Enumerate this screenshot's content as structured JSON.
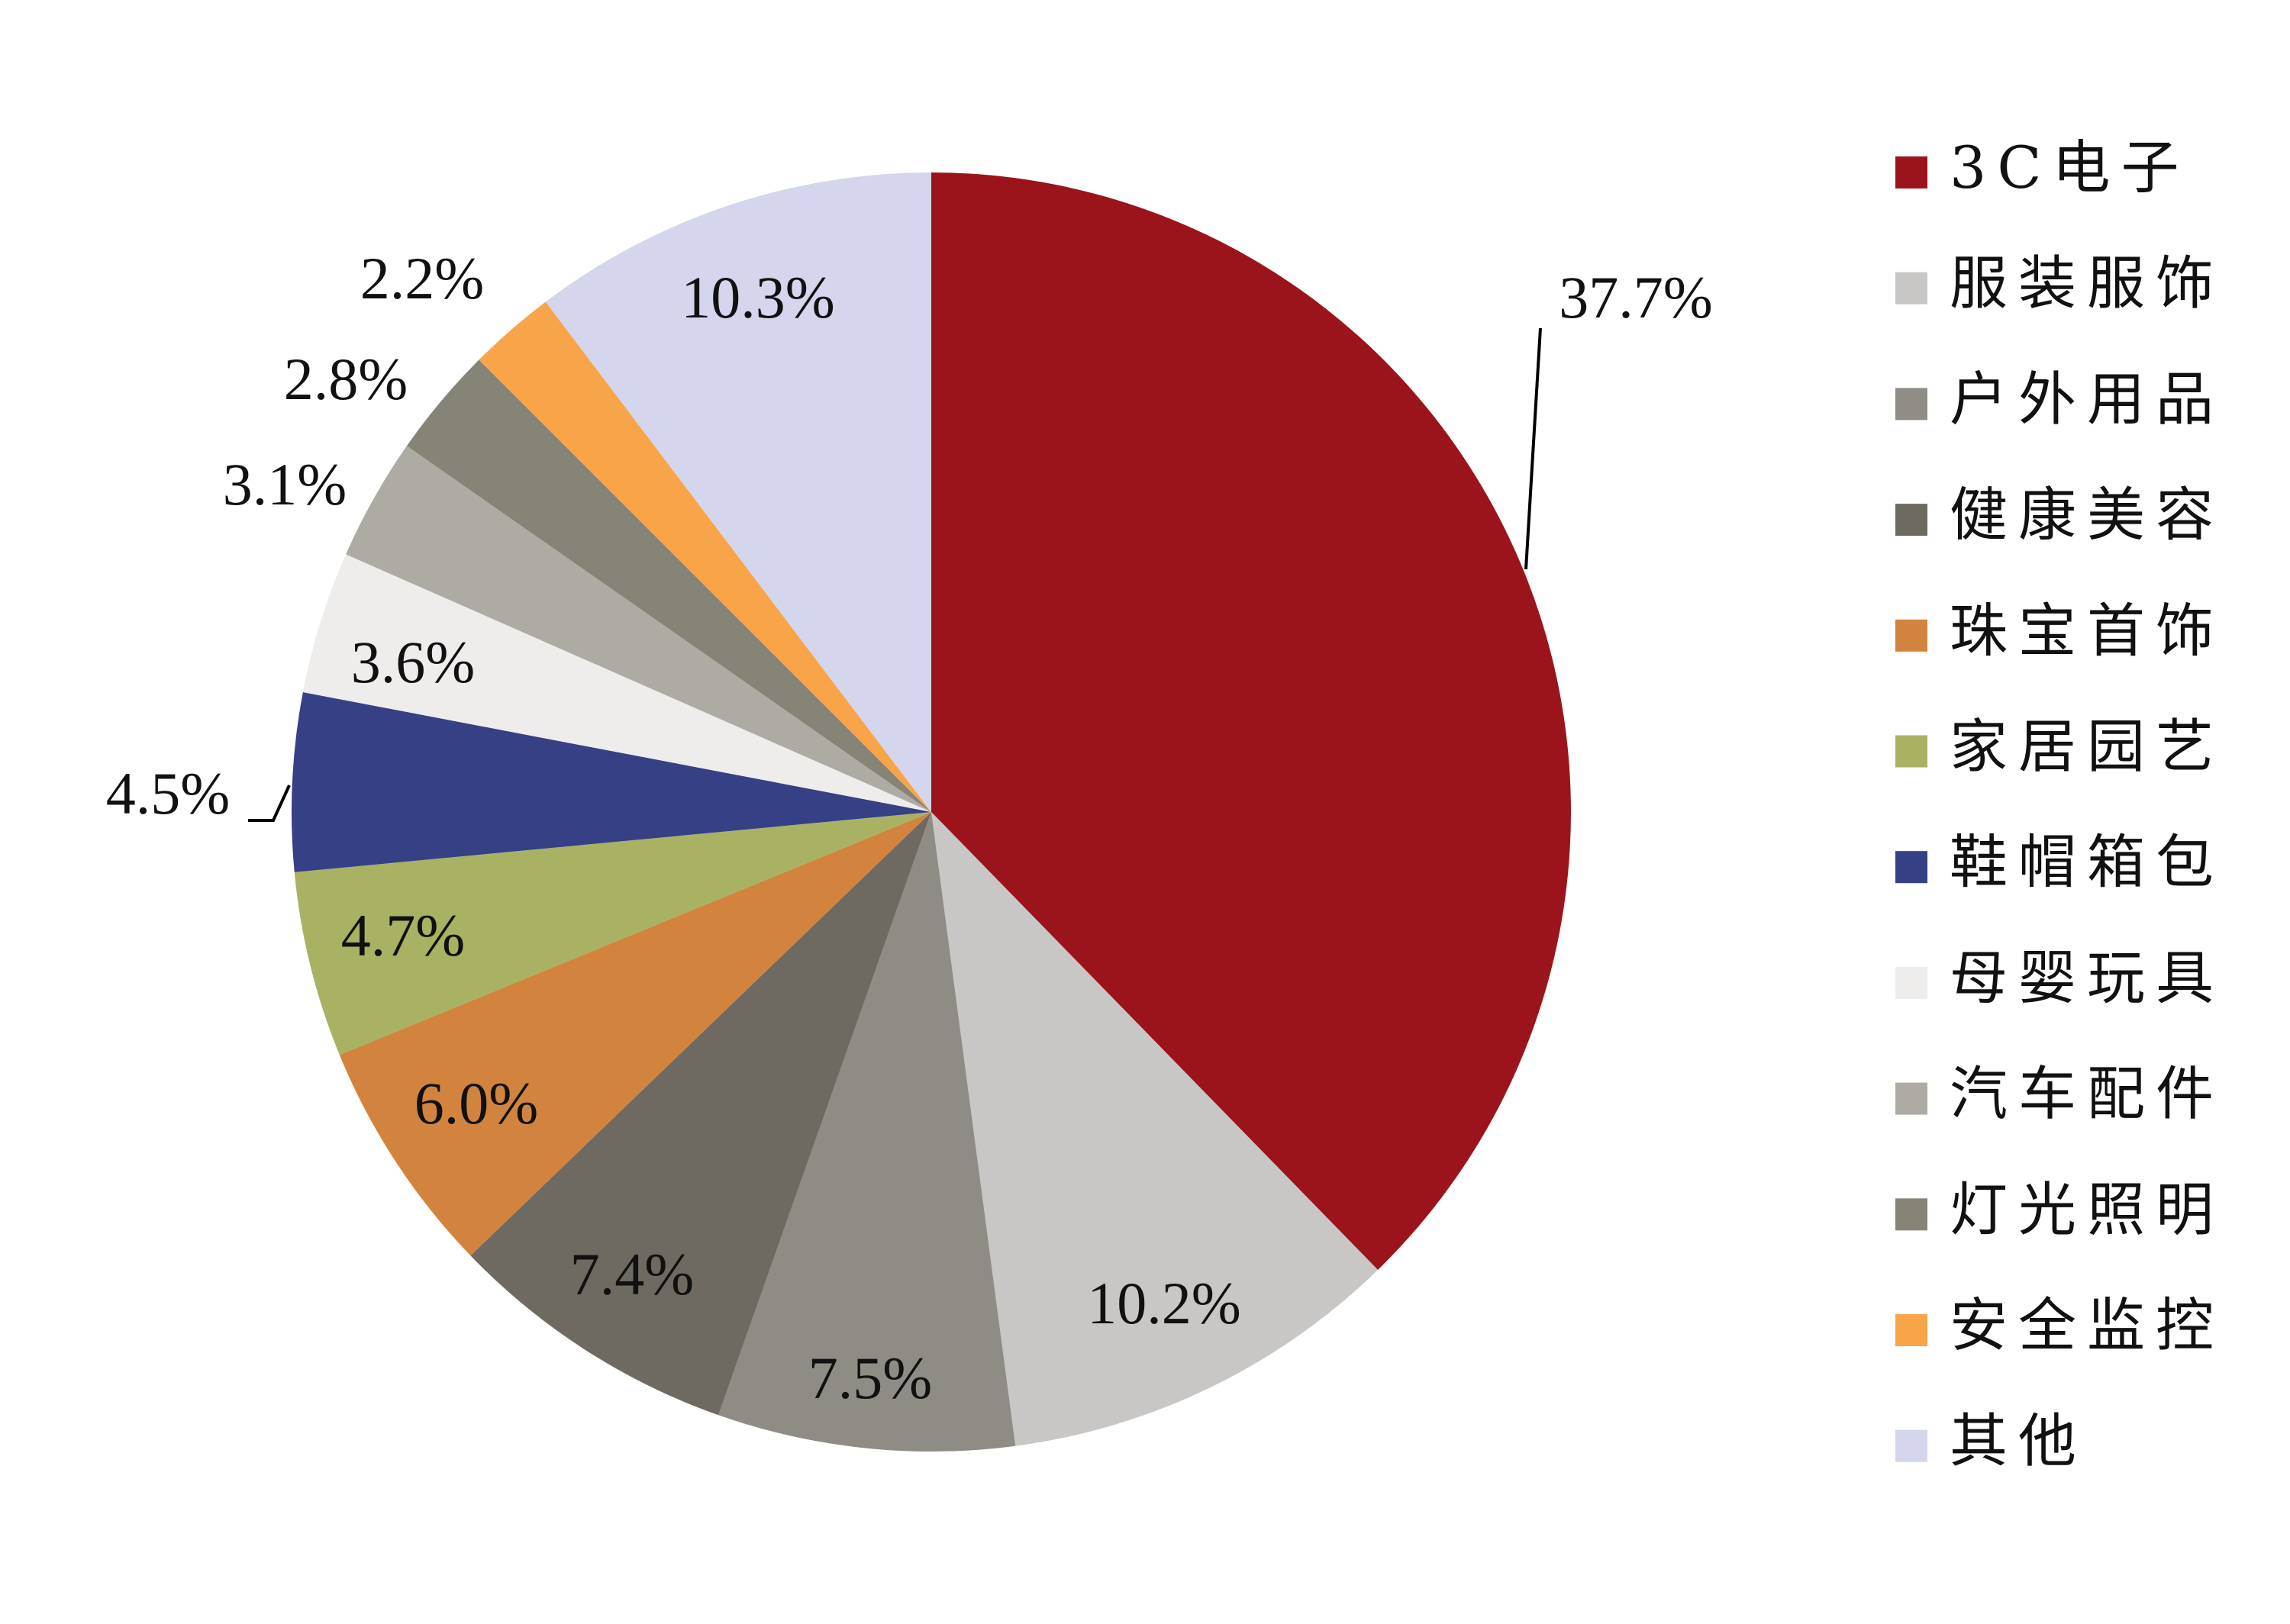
{
  "chart_data": {
    "type": "pie",
    "start": "top, clockwise",
    "legend_position": "right",
    "categories": [
      "3C电子",
      "服装服饰",
      "户外用品",
      "健康美容",
      "珠宝首饰",
      "家居园艺",
      "鞋帽箱包",
      "母婴玩具",
      "汽车配件",
      "灯光照明",
      "安全监控",
      "其他"
    ],
    "values": [
      37.7,
      10.2,
      7.5,
      7.4,
      6.0,
      4.7,
      4.5,
      3.6,
      3.1,
      2.8,
      2.2,
      10.3
    ],
    "data_labels": [
      "37.7%",
      "10.2%",
      "7.5%",
      "7.4%",
      "6.0%",
      "4.7%",
      "4.5%",
      "3.6%",
      "3.1%",
      "2.8%",
      "2.2%",
      "10.3%"
    ],
    "colors": [
      "#9B141B",
      "#C8C7C6",
      "#8E8C85",
      "#6E6A62",
      "#D2843E",
      "#A8B262",
      "#364085",
      "#EFECEC",
      "#AEABA5",
      "#868476",
      "#F8A54A",
      "#D3D6EC"
    ]
  }
}
